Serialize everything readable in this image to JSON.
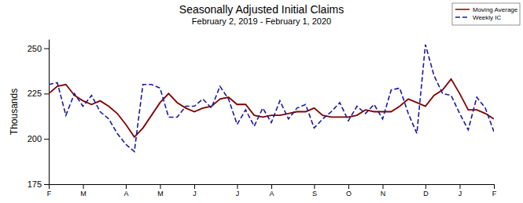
{
  "chart_data": {
    "type": "line",
    "title": "Seasonally Adjusted Initial Claims",
    "subtitle": "February 2, 2019 - February 1, 2020",
    "y_label": "Thousands",
    "categories": [
      "F",
      null,
      null,
      null,
      "M",
      null,
      null,
      null,
      null,
      "A",
      null,
      null,
      null,
      "M",
      null,
      null,
      null,
      "J",
      null,
      null,
      null,
      null,
      "J",
      null,
      null,
      null,
      "A",
      null,
      null,
      null,
      null,
      "S",
      null,
      null,
      null,
      "O",
      null,
      null,
      null,
      "N",
      null,
      null,
      null,
      null,
      "D",
      null,
      null,
      null,
      "J",
      null,
      null,
      null,
      "F"
    ],
    "series": [
      {
        "name": "Moving Average",
        "color": "#800000",
        "line_style": "solid",
        "values": [
          225,
          229,
          230,
          224,
          221,
          219,
          221,
          218,
          214,
          208,
          201,
          206,
          213,
          220,
          225,
          220,
          217,
          215,
          217,
          218,
          222,
          223,
          219,
          219,
          213,
          212,
          213,
          213,
          214,
          215,
          215,
          217,
          213,
          212,
          212,
          212,
          213,
          216,
          215,
          215,
          215,
          218,
          222,
          220,
          218,
          224,
          227,
          233,
          225,
          216,
          216,
          214,
          211
        ]
      },
      {
        "name": "Weekly IC",
        "color": "#1a1a9c",
        "line_style": "dashed",
        "values": [
          230,
          231,
          213,
          225,
          218,
          224,
          215,
          211,
          203,
          197,
          193,
          230,
          230,
          228,
          212,
          212,
          218,
          218,
          222,
          217,
          229,
          222,
          208,
          216,
          207,
          217,
          209,
          221,
          211,
          217,
          219,
          206,
          211,
          215,
          220,
          210,
          218,
          214,
          219,
          211,
          227,
          228,
          214,
          203,
          252,
          235,
          225,
          224,
          214,
          205,
          223,
          217,
          204
        ]
      }
    ],
    "ylim": [
      175,
      255
    ],
    "yticks": [
      175,
      200,
      225,
      250
    ],
    "grid": false,
    "legend": "top-right"
  }
}
